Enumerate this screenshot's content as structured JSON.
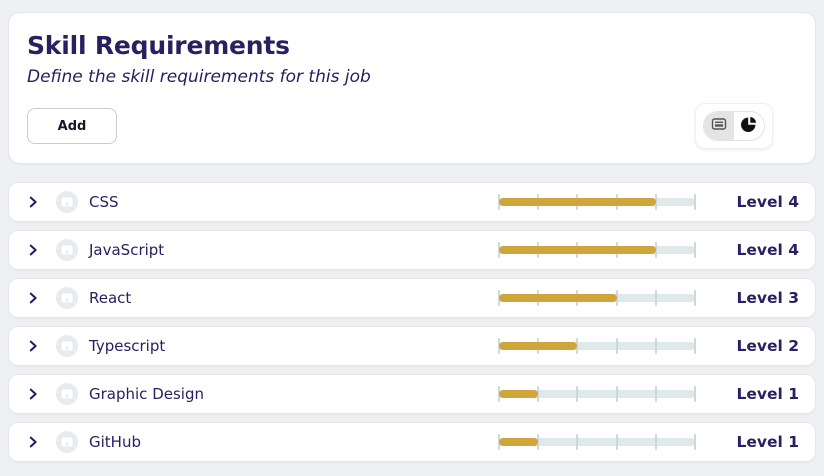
{
  "header": {
    "title": "Skill Requirements",
    "subtitle": "Define the skill requirements for this job",
    "add_button_label": "Add",
    "view_toggle": {
      "options": [
        "list-view",
        "pie-chart-view"
      ],
      "selected": "list-view"
    }
  },
  "colors": {
    "accent_gold": "#d2a43c",
    "navy_text": "#272160",
    "slider_track": "#dfe9eb",
    "page_background": "#eef0f3"
  },
  "slider": {
    "max_level": 5,
    "tick_count": 6
  },
  "skills": [
    {
      "name": "CSS",
      "level": 4,
      "level_label": "Level 4"
    },
    {
      "name": "JavaScript",
      "level": 4,
      "level_label": "Level 4"
    },
    {
      "name": "React",
      "level": 3,
      "level_label": "Level 3"
    },
    {
      "name": "Typescript",
      "level": 2,
      "level_label": "Level 2"
    },
    {
      "name": "Graphic Design",
      "level": 1,
      "level_label": "Level 1"
    },
    {
      "name": "GitHub",
      "level": 1,
      "level_label": "Level 1"
    }
  ]
}
